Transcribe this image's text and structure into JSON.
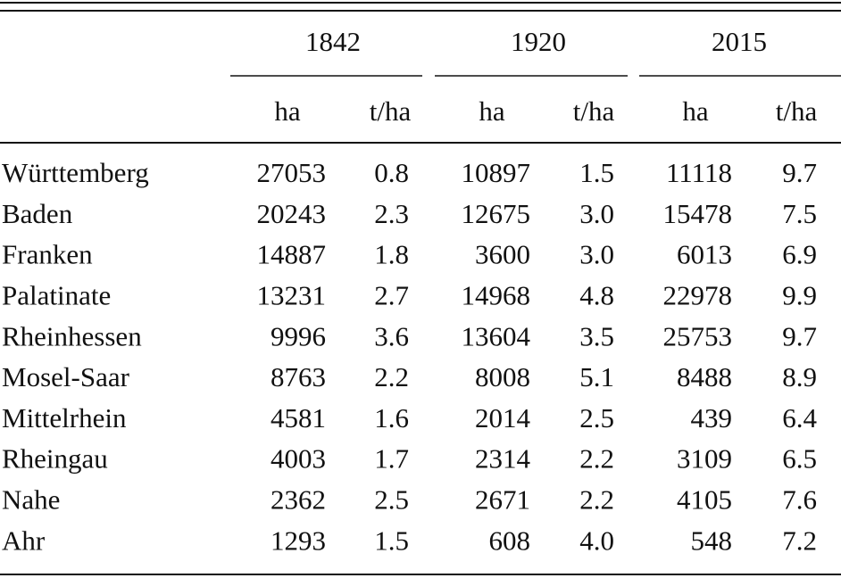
{
  "table": {
    "groups": [
      "1842",
      "1920",
      "2015"
    ],
    "subheaders": [
      "ha",
      "t/ha",
      "ha",
      "t/ha",
      "ha",
      "t/ha"
    ],
    "rows": [
      [
        "Württemberg",
        "27053",
        "0.8",
        "10897",
        "1.5",
        "11118",
        "9.7"
      ],
      [
        "Baden",
        "20243",
        "2.3",
        "12675",
        "3.0",
        "15478",
        "7.5"
      ],
      [
        "Franken",
        "14887",
        "1.8",
        "3600",
        "3.0",
        "6013",
        "6.9"
      ],
      [
        "Palatinate",
        "13231",
        "2.7",
        "14968",
        "4.8",
        "22978",
        "9.9"
      ],
      [
        "Rheinhessen",
        "9996",
        "3.6",
        "13604",
        "3.5",
        "25753",
        "9.7"
      ],
      [
        "Mosel-Saar",
        "8763",
        "2.2",
        "8008",
        "5.1",
        "8488",
        "8.9"
      ],
      [
        "Mittelrhein",
        "4581",
        "1.6",
        "2014",
        "2.5",
        "439",
        "6.4"
      ],
      [
        "Rheingau",
        "4003",
        "1.7",
        "2314",
        "2.2",
        "3109",
        "6.5"
      ],
      [
        "Nahe",
        "2362",
        "2.5",
        "2671",
        "2.2",
        "4105",
        "7.6"
      ],
      [
        "Ahr",
        "1293",
        "1.5",
        "608",
        "4.0",
        "548",
        "7.2"
      ]
    ]
  }
}
